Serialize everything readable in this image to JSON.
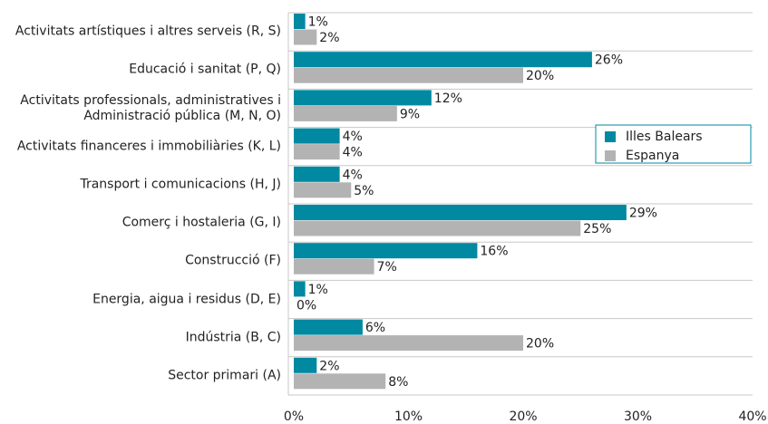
{
  "chart_data": {
    "type": "bar",
    "orientation": "horizontal",
    "categories": [
      "Activitats artístiques i altres serveis (R, S)",
      "Educació i sanitat (P, Q)",
      "Activitats professionals, administratives i\nAdministració pública (M, N, O)",
      "Activitats financeres i immobiliàries (K, L)",
      "Transport i comunicacions (H, J)",
      "Comerç i hostaleria (G, I)",
      "Construcció (F)",
      "Energia, aigua i residus (D, E)",
      "Indústria (B, C)",
      "Sector primari (A)"
    ],
    "series": [
      {
        "name": "Illes Balears",
        "color": "#0089a0",
        "values": [
          1,
          26,
          12,
          4,
          4,
          29,
          16,
          1,
          6,
          2
        ],
        "value_labels": [
          "1%",
          "26%",
          "12%",
          "4%",
          "4%",
          "29%",
          "16%",
          "1%",
          "6%",
          "2%"
        ]
      },
      {
        "name": "Espanya",
        "color": "#b3b3b3",
        "values": [
          2,
          20,
          9,
          4,
          5,
          25,
          7,
          0,
          20,
          8
        ],
        "value_labels": [
          "2%",
          "20%",
          "9%",
          "4%",
          "5%",
          "25%",
          "7%",
          "0%",
          "20%",
          "8%"
        ]
      }
    ],
    "xlim": [
      0,
      40
    ],
    "xticks": [
      {
        "value": 0,
        "label": "0%"
      },
      {
        "value": 10,
        "label": "10%"
      },
      {
        "value": 20,
        "label": "20%"
      },
      {
        "value": 30,
        "label": "30%"
      },
      {
        "value": 40,
        "label": "40%"
      }
    ],
    "legend": "upper right",
    "grid": false
  }
}
